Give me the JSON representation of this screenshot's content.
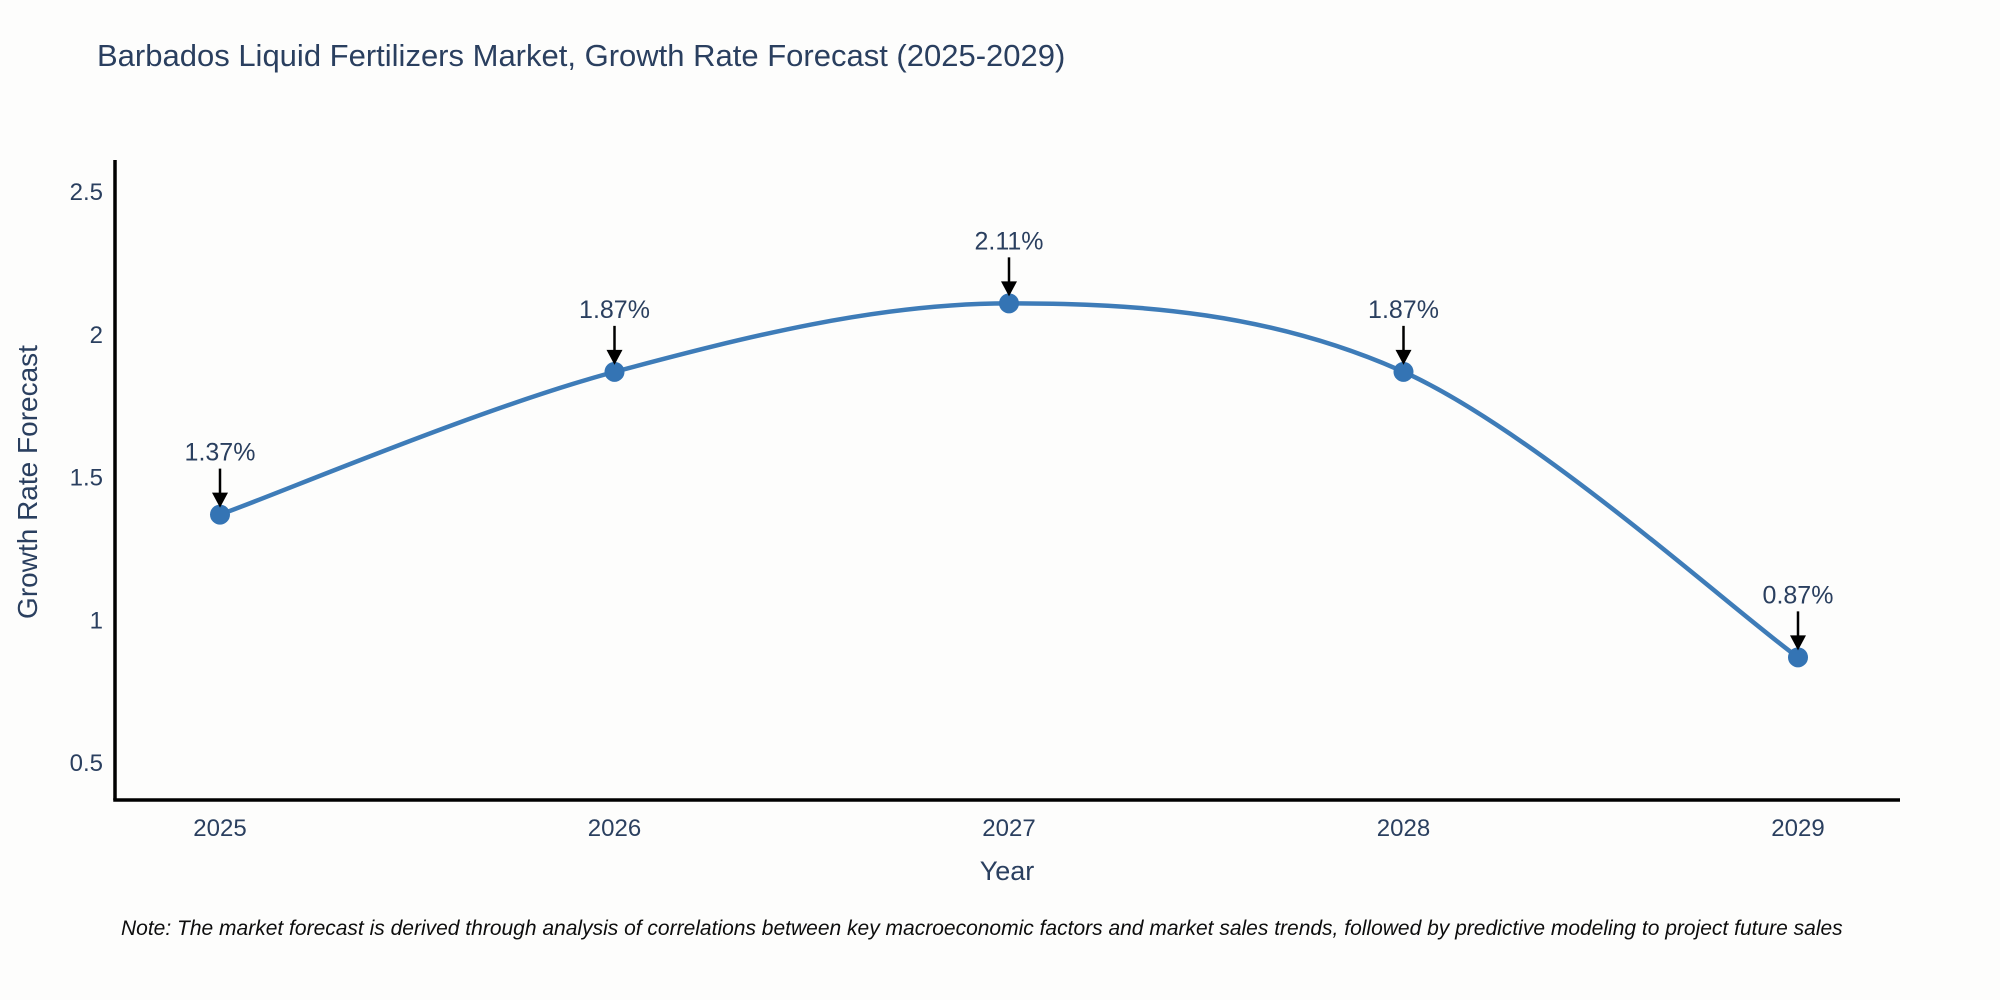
{
  "title": "Barbados Liquid Fertilizers Market, Growth Rate Forecast (2025-2029)",
  "note": "Note: The market forecast is derived through analysis of correlations between key macroeconomic factors and market sales trends, followed by predictive modeling to project future sales",
  "chart_data": {
    "type": "line",
    "line_shape": "spline",
    "title": "Barbados Liquid Fertilizers Market, Growth Rate Forecast (2025-2029)",
    "xlabel": "Year",
    "ylabel": "Growth Rate Forecast",
    "x": [
      2025,
      2026,
      2027,
      2028,
      2029
    ],
    "values": [
      1.37,
      1.87,
      2.11,
      1.87,
      0.87
    ],
    "point_labels": [
      "1.37%",
      "1.87%",
      "2.11%",
      "1.87%",
      "0.87%"
    ],
    "x_tick_labels": [
      "2025",
      "2026",
      "2027",
      "2028",
      "2029"
    ],
    "y_ticks": [
      0.5,
      1,
      1.5,
      2,
      2.5
    ],
    "y_tick_labels": [
      "0.5",
      "1",
      "1.5",
      "2",
      "2.5"
    ],
    "ylim": [
      0.37,
      2.62
    ],
    "xlim": [
      2024.73,
      2029.26
    ],
    "grid": false,
    "legend": "none",
    "colors": {
      "line": "#3e7cb8",
      "marker": "#3474b4",
      "axis": "#000000",
      "tick_text": "#2a3f5f",
      "annotation_text": "#2a3f5f",
      "annotation_arrow": "#000000",
      "background": "#fdfdfc"
    }
  }
}
